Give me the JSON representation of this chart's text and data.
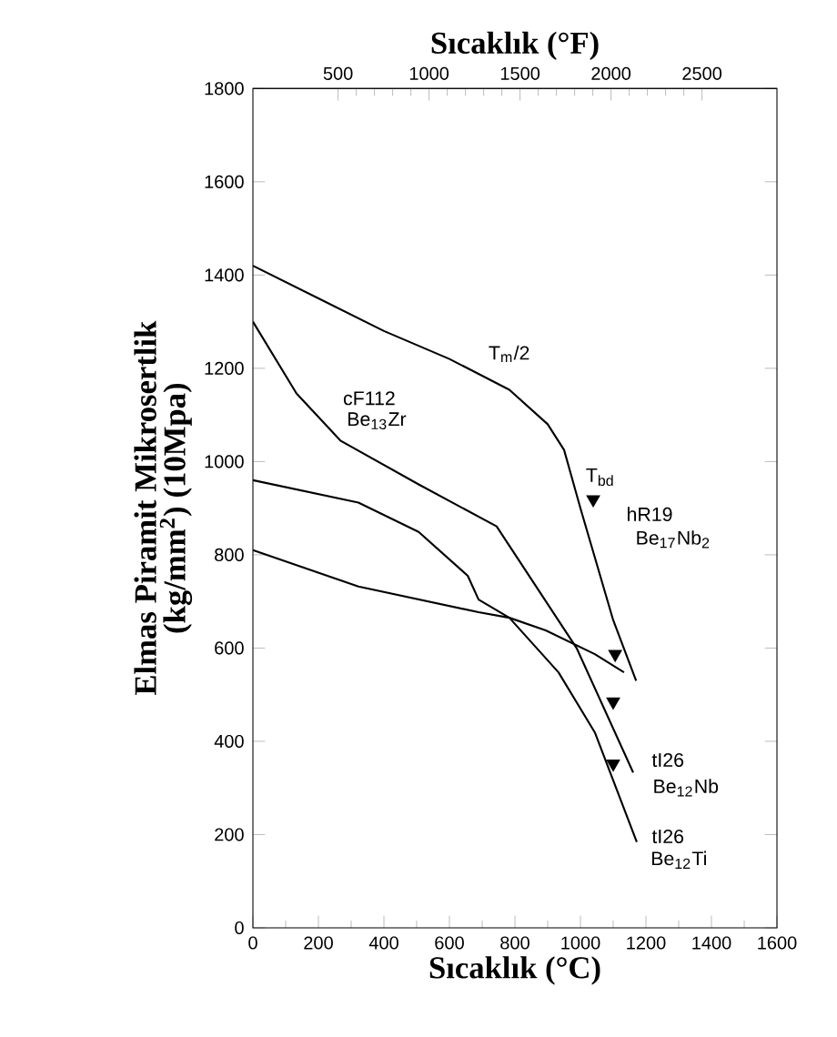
{
  "chart_data": {
    "type": "line",
    "xlabel": "Sıcaklık (°C)",
    "x2label": "Sıcaklık (°F)",
    "ylabel": "Elmas Piramit Mikrosertlik (kg/mm$^{2}$) (10Mpa)",
    "xlim": [
      0,
      1600
    ],
    "xticks": [
      0,
      200,
      400,
      600,
      800,
      1000,
      1200,
      1400,
      1600
    ],
    "x2lim": [
      32,
      2912
    ],
    "x2ticks": [
      500,
      1000,
      1500,
      2000,
      2500
    ],
    "ylim": [
      0,
      1800
    ],
    "yticks": [
      0,
      200,
      400,
      600,
      800,
      1000,
      1200,
      1400,
      1600,
      1800
    ],
    "grid": false,
    "marker": "none",
    "line_style": "solid",
    "series": [
      {
        "color": "#000000",
        "x": [
          0,
          200,
          400,
          600,
          783,
          900,
          950,
          1000,
          1050,
          1100,
          1170
        ],
        "values": [
          1420,
          1350,
          1280,
          1220,
          1154,
          1080,
          1025,
          900,
          780,
          660,
          530
        ]
      },
      {
        "color": "#000000",
        "x": [
          0,
          133,
          267,
          506,
          744,
          989,
          1161
        ],
        "values": [
          1300,
          1146,
          1045,
          951,
          861,
          599,
          333
        ]
      },
      {
        "color": "#000000",
        "x": [
          0,
          322,
          506,
          656,
          689,
          783,
          933,
          1044,
          1172
        ],
        "values": [
          960,
          912,
          849,
          755,
          704,
          665,
          548,
          419,
          184
        ]
      },
      {
        "color": "#000000",
        "x": [
          0,
          322,
          689,
          783,
          894,
          1044,
          1133
        ],
        "values": [
          810,
          732,
          677,
          665,
          638,
          587,
          548
        ]
      },
      {
        "type": "scatter",
        "marker": "triangle",
        "color": "#000000",
        "x": [
          1039,
          1106,
          1100,
          1100
        ],
        "values": [
          919,
          587,
          485,
          352
        ]
      }
    ],
    "annotations": [
      "T$_{m}$/2",
      "T$_{bd}$",
      "hR19",
      "Be$_{17}$Nb$_{2}$",
      "cF112",
      "Be$_{13}$Zr",
      "tI26",
      "Be$_{12}$Nb",
      "tI26",
      "Be$_{12}$Ti"
    ]
  }
}
